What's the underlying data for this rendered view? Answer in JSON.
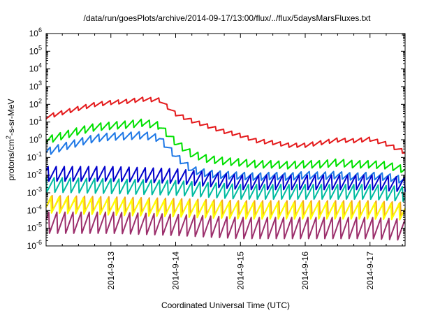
{
  "chart_data": {
    "type": "line",
    "title": "/data/run/goesPlots/archive/2014-09-17/13:00/flux/../flux/5daysMarsFluxes.txt",
    "xlabel": "Coordinated Universal Time (UTC)",
    "ylabel": "protons/cm2-s-sr-MeV",
    "y_scale": "log",
    "ylim": [
      1e-06,
      1000000.0
    ],
    "x_ticks": [
      "2014-9-13",
      "2014-9-14",
      "2014-9-15",
      "2014-9-16",
      "2014-9-17"
    ],
    "y_ticks": [
      "10-6",
      "10-5",
      "10-4",
      "10-3",
      "10-2",
      "10-1",
      "100",
      "101",
      "102",
      "103",
      "104",
      "105",
      "106"
    ],
    "xlim": [
      "2014-09-12T00:00Z",
      "2014-09-17T13:00Z"
    ],
    "grid": false,
    "series": [
      {
        "color": "#e41a1c",
        "hours": [
          0,
          12,
          18,
          24,
          30,
          36,
          42,
          48,
          54,
          60,
          66,
          72,
          78,
          84,
          90,
          96,
          102,
          108,
          114,
          120,
          126,
          133
        ],
        "values": [
          20,
          60,
          100,
          130,
          150,
          200,
          180,
          30,
          12,
          6,
          3,
          1.8,
          0.9,
          0.7,
          0.5,
          0.5,
          0.7,
          1.0,
          0.9,
          1.1,
          0.6,
          0.2
        ],
        "teeth": 0.25,
        "period": 3
      },
      {
        "color": "#00e000",
        "hours": [
          0,
          12,
          18,
          24,
          30,
          36,
          42,
          48,
          54,
          60,
          66,
          72,
          78,
          84,
          90,
          96,
          102,
          108,
          114,
          120,
          126,
          133
        ],
        "values": [
          0.9,
          3,
          5,
          6,
          7,
          9,
          6,
          0.7,
          0.15,
          0.08,
          0.06,
          0.05,
          0.04,
          0.04,
          0.035,
          0.04,
          0.04,
          0.05,
          0.04,
          0.04,
          0.035,
          0.02
        ],
        "teeth": 0.45,
        "period": 3
      },
      {
        "color": "#1e78e6",
        "hours": [
          0,
          12,
          18,
          24,
          30,
          36,
          42,
          48,
          54,
          60,
          66,
          72,
          78,
          84,
          90,
          96,
          102,
          108,
          114,
          120,
          126,
          133
        ],
        "values": [
          0.2,
          0.7,
          1.2,
          1.5,
          1.6,
          1.8,
          1.2,
          0.12,
          0.02,
          0.012,
          0.01,
          0.009,
          0.008,
          0.009,
          0.008,
          0.01,
          0.009,
          0.01,
          0.008,
          0.009,
          0.008,
          0.005
        ],
        "teeth": 0.45,
        "period": 3
      },
      {
        "color": "#0000cc",
        "hours": [
          0,
          24,
          48,
          72,
          96,
          120,
          133
        ],
        "values": [
          0.012,
          0.012,
          0.009,
          0.004,
          0.004,
          0.004,
          0.003
        ],
        "teeth": 0.9,
        "period": 3
      },
      {
        "color": "#00bba0",
        "hours": [
          0,
          24,
          48,
          72,
          96,
          120,
          133
        ],
        "values": [
          0.003,
          0.0025,
          0.002,
          0.0012,
          0.0012,
          0.0012,
          0.0009
        ],
        "teeth": 0.9,
        "period": 3
      },
      {
        "color": "#f2a61c",
        "hours": [
          0,
          24,
          48,
          72,
          96,
          120,
          133
        ],
        "values": [
          0.0003,
          0.00025,
          0.0002,
          0.00015,
          0.00015,
          0.00015,
          0.00012
        ],
        "teeth": 0.9,
        "period": 3
      },
      {
        "color": "#ffff00",
        "hours": [
          0,
          24,
          48,
          72,
          96,
          120,
          133
        ],
        "values": [
          0.0002,
          0.00015,
          0.00012,
          9e-05,
          9e-05,
          9e-05,
          8e-05
        ],
        "teeth": 1.0,
        "period": 3
      },
      {
        "color": "#9c2f6c",
        "hours": [
          0,
          24,
          48,
          72,
          96,
          120,
          133
        ],
        "values": [
          2e-05,
          2e-05,
          1.5e-05,
          1e-05,
          1e-05,
          1e-05,
          8e-06
        ],
        "teeth": 1.3,
        "period": 3
      }
    ]
  }
}
